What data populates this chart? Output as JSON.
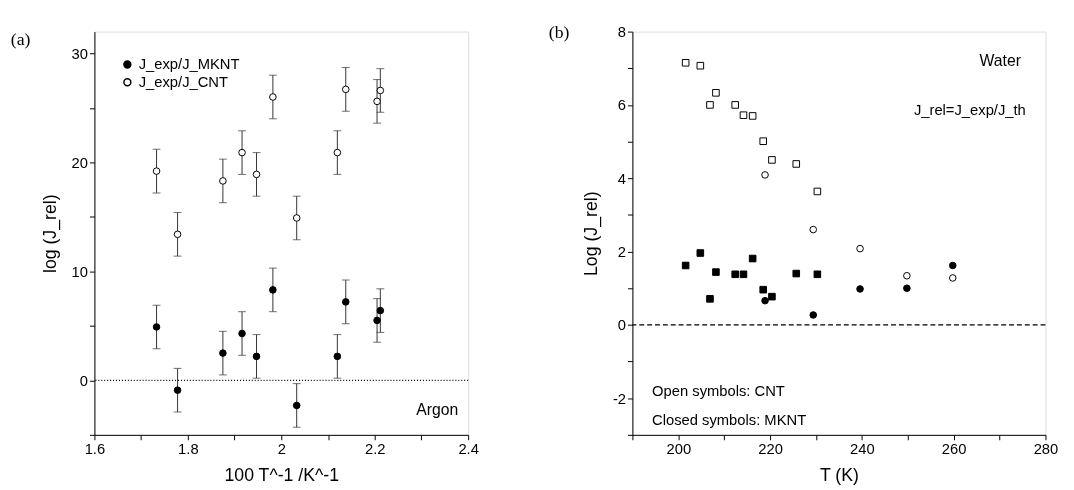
{
  "chart_data": [
    {
      "type": "scatter",
      "title": "(a)",
      "xlabel": "100 T^-1 /K^-1",
      "ylabel": "log (J_rel)",
      "xlim": [
        1.6,
        2.4
      ],
      "ylim": [
        -5,
        32
      ],
      "xticks": [
        1.6,
        {
          "value": 1.7,
          "label": null
        },
        1.8,
        {
          "value": 1.9,
          "label": null
        },
        2,
        {
          "value": 2.1,
          "label": null
        },
        2.2,
        {
          "value": 2.3,
          "label": null
        },
        2.4
      ],
      "yticks": [
        {
          "value": -5,
          "label": null
        },
        0,
        {
          "value": 5,
          "label": null
        },
        10,
        {
          "value": 15,
          "label": null
        },
        20,
        {
          "value": 25,
          "label": null
        },
        30
      ],
      "legend": "top left",
      "annotations": [
        "Argon"
      ],
      "ref_lines": [
        {
          "axis": "y",
          "value": 0,
          "line_style": "dotted",
          "color": "#000000"
        }
      ],
      "series": [
        {
          "name": "J_exp/J_MKNT",
          "color": "#000000",
          "marker": "circle",
          "x": [
            1.733,
            1.778,
            1.875,
            1.916,
            1.947,
            1.982,
            2.033,
            2.12,
            2.138,
            2.205,
            2.212
          ],
          "values": [
            4.9,
            -0.9,
            2.5,
            4.3,
            2.2,
            8.3,
            -2.3,
            2.2,
            7.2,
            5.5,
            6.4
          ],
          "errors": [
            2,
            2,
            2,
            2,
            2,
            2,
            2,
            2,
            2,
            2,
            2
          ]
        },
        {
          "name": "J_exp/J_CNT",
          "color": "#ffffff",
          "marker": "circle",
          "x": [
            1.733,
            1.778,
            1.875,
            1.916,
            1.947,
            1.982,
            2.033,
            2.12,
            2.138,
            2.205,
            2.212
          ],
          "values": [
            19.2,
            13.4,
            18.3,
            20.9,
            18.9,
            26,
            14.9,
            20.9,
            26.7,
            25.6,
            26.6
          ],
          "errors": [
            2,
            2,
            2,
            2,
            2,
            2,
            2,
            2,
            2,
            2,
            2
          ]
        }
      ]
    },
    {
      "type": "scatter",
      "title": "(b)",
      "xlabel": "T (K)",
      "ylabel": "Log (J_rel)",
      "xlim": [
        190,
        280
      ],
      "ylim": [
        -3,
        8
      ],
      "xticks": [
        {
          "value": 190,
          "label": null
        },
        200,
        {
          "value": 210,
          "label": null
        },
        220,
        {
          "value": 230,
          "label": null
        },
        240,
        {
          "value": 250,
          "label": null
        },
        260,
        {
          "value": 270,
          "label": null
        },
        280
      ],
      "yticks": [
        {
          "value": -3,
          "label": null
        },
        -2,
        {
          "value": -1,
          "label": null
        },
        0,
        {
          "value": 1,
          "label": null
        },
        2,
        {
          "value": 3,
          "label": null
        },
        4,
        {
          "value": 5,
          "label": null
        },
        6,
        {
          "value": 7,
          "label": null
        },
        8
      ],
      "legend": false,
      "annotations": [
        "Water",
        "J_rel=J_exp/J_th",
        "Open symbols: CNT",
        "Closed symbols: MKNT"
      ],
      "ref_lines": [
        {
          "axis": "y",
          "value": 0,
          "line_style": "dashed",
          "color": "#000000"
        }
      ],
      "series": [
        {
          "color": "#ffffff",
          "marker": "square",
          "x": [
            201.6,
            204.8,
            206.9,
            208.2,
            212.4,
            214.2,
            216.2,
            218.5,
            220.4,
            225.7,
            230.3
          ],
          "values": [
            7.15,
            7.07,
            6.0,
            6.33,
            6.0,
            5.72,
            5.7,
            5.01,
            4.5,
            4.39,
            3.64
          ]
        },
        {
          "color": "#ffffff",
          "marker": "circle",
          "x": [
            218.9,
            229.4,
            239.6,
            249.8,
            259.8
          ],
          "values": [
            4.09,
            2.6,
            2.08,
            1.34,
            1.28
          ]
        },
        {
          "color": "#000000",
          "marker": "square",
          "x": [
            201.6,
            204.8,
            206.9,
            208.2,
            212.4,
            214.2,
            216.2,
            218.5,
            220.4,
            225.7,
            230.3
          ],
          "values": [
            1.62,
            1.96,
            0.71,
            1.44,
            1.38,
            1.38,
            1.81,
            0.96,
            0.77,
            1.4,
            1.38
          ]
        },
        {
          "color": "#000000",
          "marker": "circle",
          "x": [
            218.9,
            229.4,
            239.6,
            249.8,
            259.8
          ],
          "values": [
            0.66,
            0.27,
            0.98,
            1.0,
            1.62
          ]
        }
      ]
    }
  ]
}
